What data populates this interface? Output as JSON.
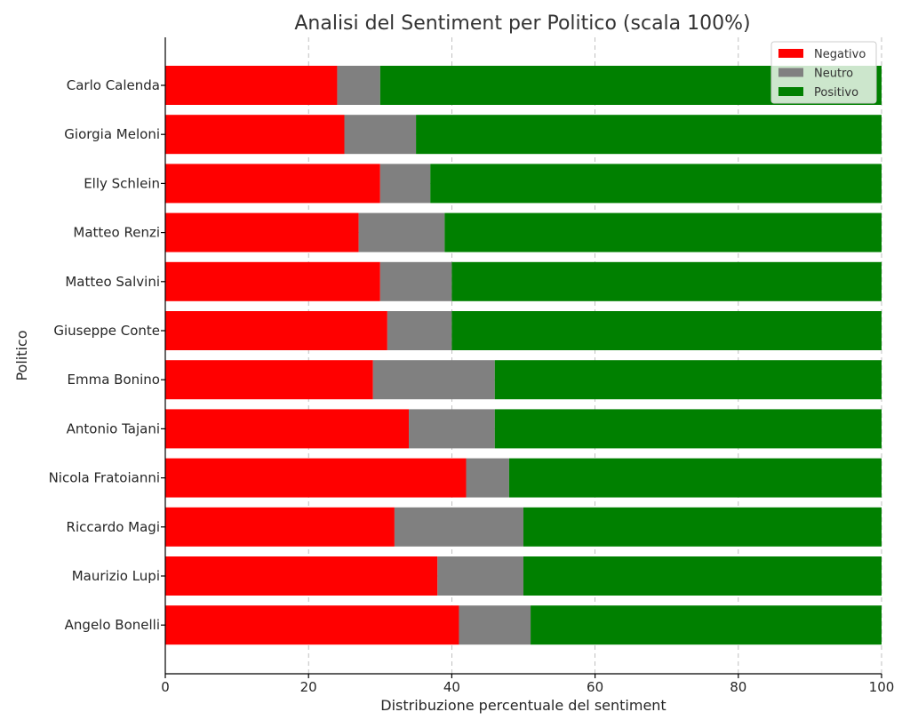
{
  "chart_data": {
    "type": "bar",
    "orientation": "horizontal",
    "stacked": true,
    "title": "Analisi del Sentiment per Politico (scala 100%)",
    "xlabel": "Distribuzione percentuale del sentiment",
    "ylabel": "Politico",
    "xlim": [
      0,
      100
    ],
    "xticks": [
      0,
      20,
      40,
      60,
      80,
      100
    ],
    "grid": true,
    "legend_position": "top-right",
    "categories": [
      "Carlo Calenda",
      "Giorgia Meloni",
      "Elly Schlein",
      "Matteo Renzi",
      "Matteo Salvini",
      "Giuseppe Conte",
      "Emma Bonino",
      "Antonio Tajani",
      "Nicola Fratoianni",
      "Riccardo Magi",
      "Maurizio Lupi",
      "Angelo Bonelli"
    ],
    "series": [
      {
        "name": "Negativo",
        "color": "#ff0000",
        "values": [
          24,
          25,
          30,
          27,
          30,
          31,
          29,
          34,
          42,
          32,
          38,
          41
        ]
      },
      {
        "name": "Neutro",
        "color": "#808080",
        "values": [
          6,
          10,
          7,
          12,
          10,
          9,
          17,
          12,
          6,
          18,
          12,
          10
        ]
      },
      {
        "name": "Positivo",
        "color": "#008000",
        "values": [
          70,
          65,
          63,
          61,
          60,
          60,
          54,
          54,
          52,
          50,
          50,
          49
        ]
      }
    ]
  }
}
